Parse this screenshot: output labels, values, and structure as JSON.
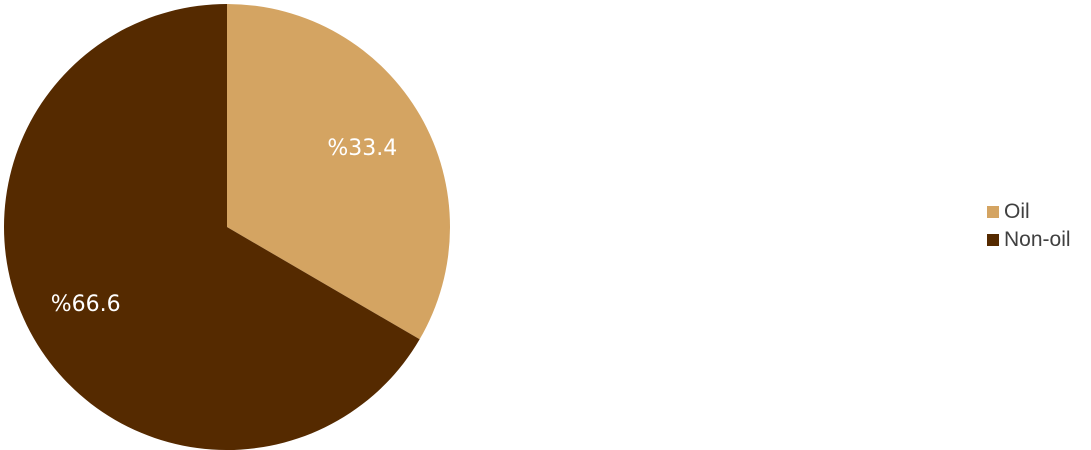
{
  "chart_data": {
    "type": "pie",
    "title": "",
    "slices": [
      {
        "name": "Oil",
        "value": 33.4,
        "label": "%33.4",
        "color": "#D4A462"
      },
      {
        "name": "Non-oil",
        "value": 66.6,
        "label": "%66.6",
        "color": "#552A00"
      }
    ],
    "start_angle_deg": 0,
    "direction": "clockwise",
    "legend_position": "right"
  }
}
